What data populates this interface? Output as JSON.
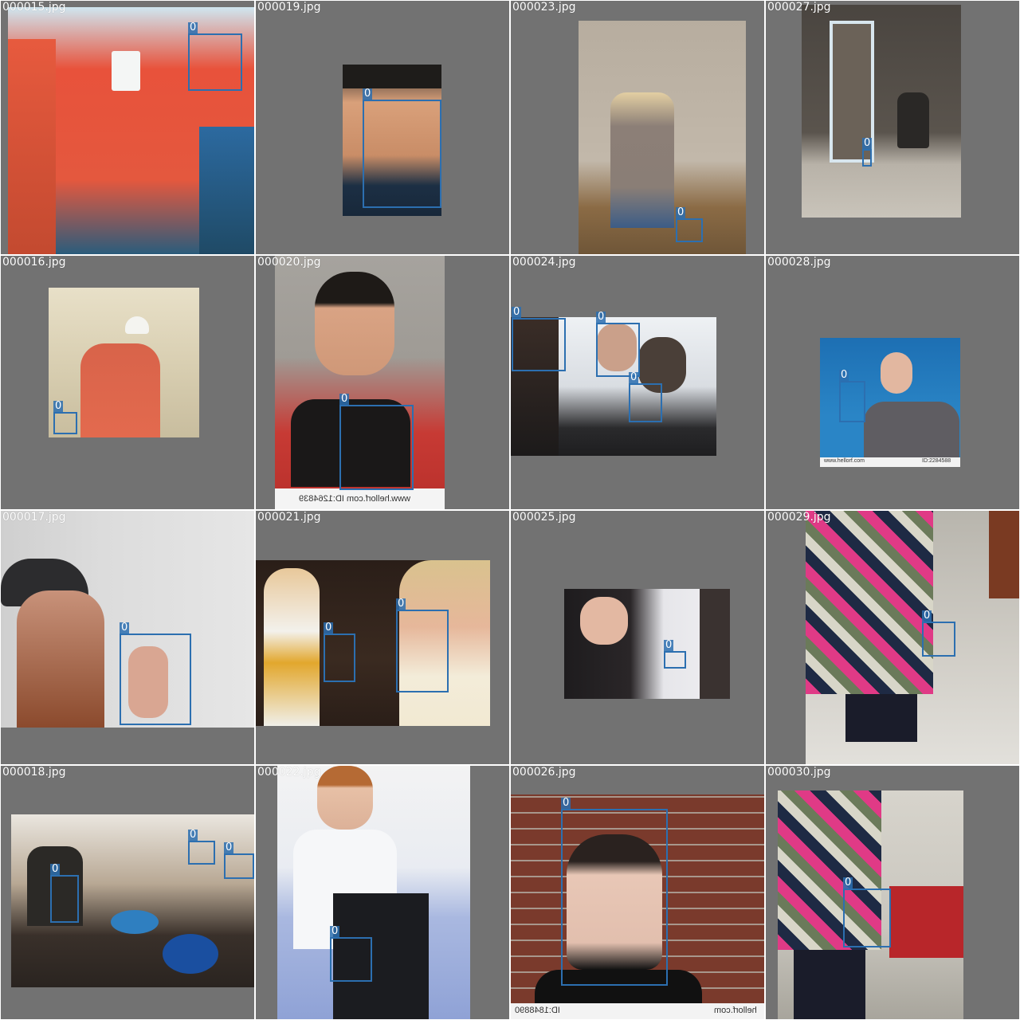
{
  "box_color": "#2c6fb0",
  "tile_bg": "#727272",
  "tiles": [
    {
      "filename": "000015.jpg",
      "boxes": [
        {
          "label": "0"
        }
      ]
    },
    {
      "filename": "000019.jpg",
      "boxes": [
        {
          "label": "0"
        }
      ]
    },
    {
      "filename": "000023.jpg",
      "boxes": [
        {
          "label": "0"
        }
      ]
    },
    {
      "filename": "000027.jpg",
      "boxes": [
        {
          "label": "0"
        }
      ]
    },
    {
      "filename": "000016.jpg",
      "boxes": [
        {
          "label": "0"
        }
      ]
    },
    {
      "filename": "000020.jpg",
      "boxes": [
        {
          "label": "0"
        }
      ],
      "watermark": "www.hellorf.com ID:1264839"
    },
    {
      "filename": "000024.jpg",
      "boxes": [
        {
          "label": "0"
        },
        {
          "label": "0"
        },
        {
          "label": "0"
        }
      ]
    },
    {
      "filename": "000028.jpg",
      "boxes": [
        {
          "label": "0"
        }
      ],
      "watermark_left": "www.hellorf.com",
      "watermark_right": "ID:2284588"
    },
    {
      "filename": "000017.jpg",
      "boxes": [
        {
          "label": "0"
        }
      ]
    },
    {
      "filename": "000021.jpg",
      "boxes": [
        {
          "label": "0"
        },
        {
          "label": "0"
        }
      ]
    },
    {
      "filename": "000025.jpg",
      "boxes": [
        {
          "label": "0"
        }
      ]
    },
    {
      "filename": "000029.jpg",
      "boxes": [
        {
          "label": "0"
        }
      ]
    },
    {
      "filename": "000018.jpg",
      "boxes": [
        {
          "label": "0"
        },
        {
          "label": "0"
        },
        {
          "label": "0"
        }
      ]
    },
    {
      "filename": "000022.jpg",
      "boxes": [
        {
          "label": "0"
        }
      ]
    },
    {
      "filename": "000026.jpg",
      "boxes": [
        {
          "label": "0"
        }
      ],
      "watermark_left": "ID:1848890",
      "watermark_right": "hellorf.com"
    },
    {
      "filename": "000030.jpg",
      "boxes": [
        {
          "label": "0"
        }
      ]
    }
  ]
}
